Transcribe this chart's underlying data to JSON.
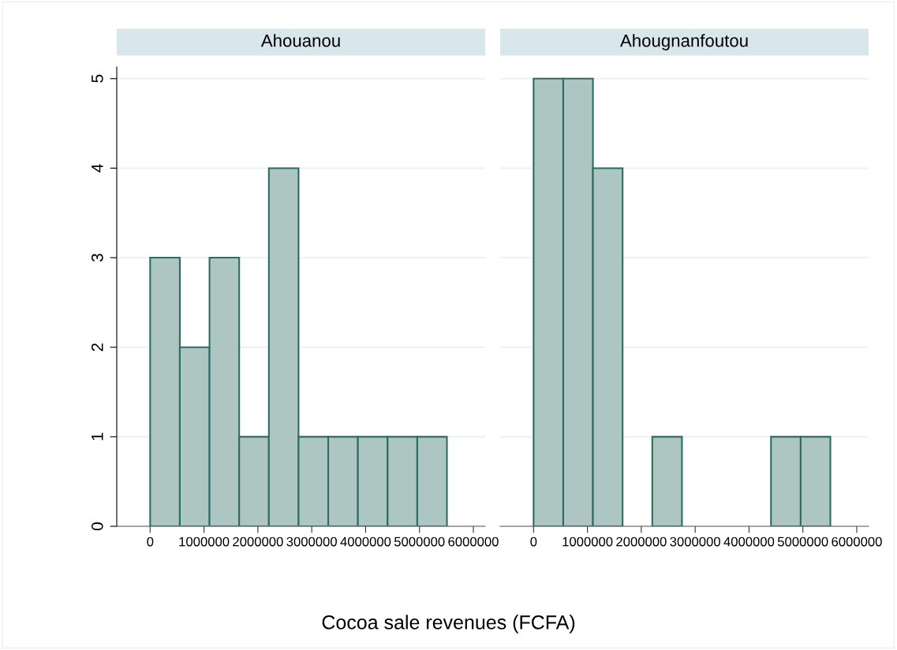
{
  "chart_data": [
    {
      "type": "histogram",
      "title": "Ahouanou",
      "xlabel": "Cocoa sale revenues (FCFA)",
      "bins": [
        0,
        551000,
        1102000,
        1653000,
        2204000,
        2755000,
        3306000,
        3857000,
        4408000,
        4959000,
        5510000
      ],
      "values": [
        3,
        2,
        3,
        1,
        4,
        1,
        1,
        1,
        1,
        1
      ],
      "color": "#adc6c1",
      "xlim": [
        -620000,
        6220000
      ],
      "xticks": [
        0,
        1000000,
        2000000,
        3000000,
        4000000,
        5000000,
        6000000
      ],
      "ylim": [
        0,
        5.13
      ],
      "yticks": [
        0,
        1,
        2,
        3,
        4,
        5
      ],
      "grid": "y"
    },
    {
      "type": "histogram",
      "title": "Ahougnanfoutou",
      "bins": [
        0,
        551000,
        1102000,
        1653000,
        2204000,
        2755000,
        3306000,
        3857000,
        4408000,
        4959000,
        5510000
      ],
      "values": [
        5,
        5,
        4,
        0,
        1,
        0,
        0,
        0,
        1,
        1
      ],
      "color": "#adc6c1",
      "xlim": [
        -620000,
        6220000
      ],
      "xticks": [
        0,
        1000000,
        2000000,
        3000000,
        4000000,
        5000000,
        6000000
      ],
      "yticks": [
        0,
        1,
        2,
        3,
        4,
        5
      ],
      "grid": "y",
      "tick_labels": "x"
    }
  ]
}
